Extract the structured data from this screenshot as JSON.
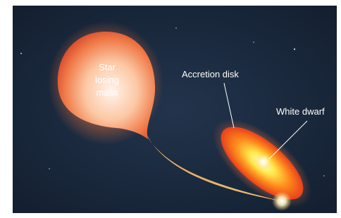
{
  "labels": {
    "star": [
      "Star",
      "losing",
      "mass"
    ],
    "accretion_disk": "Accretion disk",
    "white_dwarf": "White dwarf"
  }
}
